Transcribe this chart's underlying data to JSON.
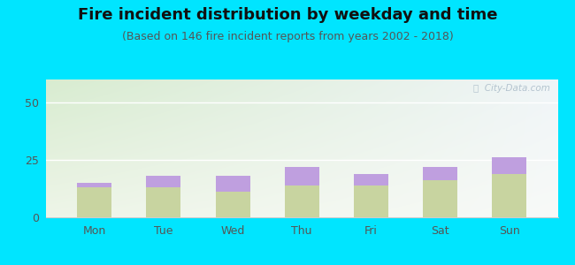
{
  "title": "Fire incident distribution by weekday and time",
  "subtitle": "(Based on 146 fire incident reports from years 2002 - 2018)",
  "categories": [
    "Mon",
    "Tue",
    "Wed",
    "Thu",
    "Fri",
    "Sat",
    "Sun"
  ],
  "pm_values": [
    13,
    13,
    11,
    14,
    14,
    16,
    19
  ],
  "am_values": [
    2,
    5,
    7,
    8,
    5,
    6,
    7
  ],
  "am_color": "#bf9fdf",
  "pm_color": "#c8d4a0",
  "background_outer": "#00e5ff",
  "background_plot_topleft": "#d8ecd0",
  "background_plot_center": "#eef5e8",
  "background_plot_right": "#f0f5f8",
  "ylim": [
    0,
    60
  ],
  "yticks": [
    0,
    25,
    50
  ],
  "bar_width": 0.5,
  "title_fontsize": 13,
  "subtitle_fontsize": 9,
  "tick_fontsize": 9,
  "legend_fontsize": 9,
  "watermark_text": "ⓘ  City-Data.com"
}
